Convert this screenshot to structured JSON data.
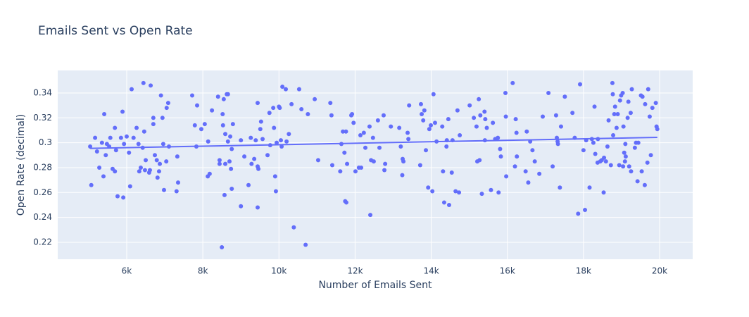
{
  "chart_data": {
    "type": "scatter",
    "title": "Emails Sent vs Open Rate",
    "x_label": "Number of Emails Sent",
    "y_label": "Open Rate (decimal)",
    "xlim": [
      4188,
      20869
    ],
    "ylim": [
      0.2064,
      0.3581
    ],
    "xticks": [
      {
        "value": 6000,
        "label": "6k"
      },
      {
        "value": 8000,
        "label": "8k"
      },
      {
        "value": 10000,
        "label": "10k"
      },
      {
        "value": 12000,
        "label": "12k"
      },
      {
        "value": 14000,
        "label": "14k"
      },
      {
        "value": 16000,
        "label": "16k"
      },
      {
        "value": 18000,
        "label": "18k"
      },
      {
        "value": 20000,
        "label": "20k"
      }
    ],
    "yticks": [
      0.22,
      0.24,
      0.26,
      0.28,
      0.3,
      0.32,
      0.34
    ],
    "grid": true,
    "series": [
      {
        "color": "#636efa",
        "mode": "markers",
        "x": [
          5040,
          5070,
          5170,
          5220,
          5280,
          5350,
          5390,
          5410,
          5450,
          5480,
          5540,
          5570,
          5630,
          5690,
          5690,
          5720,
          5760,
          5850,
          5890,
          5910,
          5930,
          6000,
          6060,
          6090,
          6130,
          6180,
          6260,
          6310,
          6330,
          6370,
          6420,
          6440,
          6460,
          6500,
          6480,
          6590,
          6610,
          6630,
          6700,
          6700,
          6740,
          6790,
          6810,
          6850,
          6870,
          6900,
          6940,
          6960,
          6980,
          7040,
          7050,
          7090,
          7110,
          7310,
          7350,
          7330,
          7720,
          7790,
          7830,
          7850,
          7960,
          8050,
          8130,
          8140,
          8180,
          8240,
          8400,
          8440,
          8440,
          8500,
          8520,
          8530,
          8550,
          8570,
          8590,
          8590,
          8630,
          8660,
          8660,
          8700,
          8720,
          8740,
          8760,
          8760,
          8790,
          9000,
          9000,
          9090,
          9200,
          9260,
          9280,
          9350,
          9390,
          9440,
          9440,
          9460,
          9440,
          9530,
          9510,
          9570,
          9700,
          9750,
          9770,
          9850,
          9870,
          9900,
          9920,
          9940,
          10000,
          10020,
          10050,
          10070,
          10090,
          10180,
          10200,
          10260,
          10330,
          10390,
          10530,
          10590,
          10700,
          10760,
          10940,
          11030,
          11350,
          11400,
          11380,
          11610,
          11640,
          11680,
          11720,
          11760,
          11740,
          11770,
          11790,
          11900,
          11920,
          11960,
          12010,
          12100,
          12140,
          12160,
          12230,
          12270,
          12380,
          12400,
          12420,
          12470,
          12490,
          12600,
          12640,
          12750,
          12770,
          12790,
          12940,
          13160,
          13200,
          13240,
          13250,
          13270,
          13380,
          13400,
          13420,
          13710,
          13730,
          13750,
          13790,
          13820,
          13860,
          13920,
          13950,
          13990,
          14030,
          14060,
          14100,
          14140,
          14290,
          14310,
          14340,
          14400,
          14410,
          14450,
          14470,
          14560,
          14540,
          14640,
          14690,
          14730,
          14750,
          15010,
          15120,
          15190,
          15210,
          15250,
          15270,
          15290,
          15330,
          15400,
          15410,
          15420,
          15460,
          15570,
          15620,
          15680,
          15750,
          15770,
          15810,
          15830,
          15950,
          15960,
          15970,
          16140,
          16200,
          16220,
          16240,
          16250,
          16480,
          16510,
          16550,
          16600,
          16660,
          16720,
          16840,
          16930,
          17080,
          17190,
          17280,
          17300,
          17320,
          17330,
          17380,
          17410,
          17510,
          17710,
          17770,
          17860,
          17910,
          18000,
          18040,
          18070,
          18160,
          18220,
          18260,
          18290,
          18310,
          18380,
          18370,
          18440,
          18480,
          18530,
          18540,
          18590,
          18630,
          18660,
          18720,
          18760,
          18770,
          18780,
          18810,
          18830,
          18870,
          18900,
          18940,
          18960,
          18990,
          19030,
          19040,
          19050,
          19070,
          19090,
          19100,
          19110,
          19160,
          19180,
          19200,
          19240,
          19250,
          19270,
          19350,
          19380,
          19420,
          19440,
          19510,
          19530,
          19550,
          19610,
          19620,
          19680,
          19700,
          19740,
          19770,
          19810,
          19900,
          19920,
          19940
        ],
        "values": [
          0.297,
          0.266,
          0.304,
          0.293,
          0.28,
          0.3,
          0.273,
          0.323,
          0.29,
          0.299,
          0.297,
          0.304,
          0.279,
          0.277,
          0.312,
          0.294,
          0.257,
          0.304,
          0.325,
          0.256,
          0.299,
          0.305,
          0.292,
          0.265,
          0.343,
          0.304,
          0.312,
          0.299,
          0.277,
          0.28,
          0.296,
          0.348,
          0.309,
          0.286,
          0.278,
          0.276,
          0.278,
          0.346,
          0.315,
          0.32,
          0.29,
          0.286,
          0.272,
          0.277,
          0.283,
          0.338,
          0.32,
          0.299,
          0.262,
          0.285,
          0.328,
          0.332,
          0.297,
          0.261,
          0.268,
          0.289,
          0.338,
          0.314,
          0.297,
          0.33,
          0.311,
          0.315,
          0.273,
          0.301,
          0.275,
          0.326,
          0.337,
          0.286,
          0.283,
          0.216,
          0.323,
          0.314,
          0.335,
          0.258,
          0.307,
          0.283,
          0.339,
          0.339,
          0.301,
          0.285,
          0.305,
          0.279,
          0.295,
          0.263,
          0.315,
          0.302,
          0.249,
          0.289,
          0.266,
          0.304,
          0.283,
          0.287,
          0.302,
          0.332,
          0.281,
          0.279,
          0.248,
          0.317,
          0.311,
          0.303,
          0.29,
          0.324,
          0.298,
          0.328,
          0.312,
          0.273,
          0.261,
          0.3,
          0.329,
          0.328,
          0.302,
          0.297,
          0.345,
          0.343,
          0.301,
          0.307,
          0.331,
          0.232,
          0.343,
          0.327,
          0.218,
          0.323,
          0.335,
          0.286,
          0.332,
          0.282,
          0.322,
          0.277,
          0.299,
          0.309,
          0.292,
          0.309,
          0.253,
          0.252,
          0.283,
          0.322,
          0.323,
          0.316,
          0.277,
          0.28,
          0.306,
          0.28,
          0.308,
          0.296,
          0.313,
          0.242,
          0.286,
          0.304,
          0.285,
          0.318,
          0.296,
          0.322,
          0.278,
          0.283,
          0.313,
          0.312,
          0.297,
          0.274,
          0.287,
          0.285,
          0.308,
          0.303,
          0.33,
          0.282,
          0.331,
          0.323,
          0.318,
          0.326,
          0.294,
          0.264,
          0.311,
          0.314,
          0.261,
          0.339,
          0.316,
          0.301,
          0.313,
          0.277,
          0.252,
          0.297,
          0.302,
          0.319,
          0.25,
          0.302,
          0.276,
          0.261,
          0.326,
          0.26,
          0.306,
          0.33,
          0.32,
          0.313,
          0.285,
          0.335,
          0.286,
          0.322,
          0.259,
          0.325,
          0.302,
          0.319,
          0.312,
          0.262,
          0.316,
          0.303,
          0.304,
          0.26,
          0.295,
          0.289,
          0.34,
          0.321,
          0.273,
          0.348,
          0.281,
          0.319,
          0.308,
          0.289,
          0.277,
          0.309,
          0.268,
          0.301,
          0.294,
          0.285,
          0.275,
          0.321,
          0.34,
          0.281,
          0.322,
          0.304,
          0.301,
          0.299,
          0.264,
          0.313,
          0.337,
          0.324,
          0.304,
          0.243,
          0.347,
          0.294,
          0.246,
          0.302,
          0.264,
          0.303,
          0.3,
          0.329,
          0.291,
          0.303,
          0.284,
          0.285,
          0.286,
          0.26,
          0.288,
          0.285,
          0.297,
          0.318,
          0.282,
          0.348,
          0.339,
          0.306,
          0.323,
          0.329,
          0.312,
          0.323,
          0.282,
          0.334,
          0.338,
          0.34,
          0.281,
          0.313,
          0.292,
          0.285,
          0.299,
          0.289,
          0.32,
          0.333,
          0.281,
          0.324,
          0.277,
          0.343,
          0.296,
          0.3,
          0.269,
          0.3,
          0.338,
          0.277,
          0.337,
          0.266,
          0.331,
          0.284,
          0.343,
          0.321,
          0.29,
          0.328,
          0.332,
          0.313,
          0.311
        ]
      },
      {
        "color": "#636efa",
        "mode": "lines",
        "x": [
          5040,
          19940
        ],
        "values": [
          0.2955,
          0.3043
        ]
      }
    ]
  }
}
